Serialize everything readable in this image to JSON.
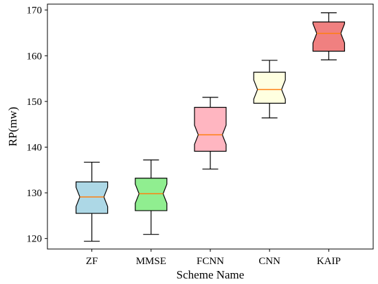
{
  "chart_data": {
    "type": "box",
    "categories": [
      "ZF",
      "MMSE",
      "FCNN",
      "CNN",
      "KAIP"
    ],
    "boxes": [
      {
        "category": "ZF",
        "whisker_low": 119.4,
        "q1": 125.5,
        "median": 129.1,
        "q3": 132.4,
        "whisker_high": 136.7,
        "color": "#add8e6"
      },
      {
        "category": "MMSE",
        "whisker_low": 120.9,
        "q1": 126.1,
        "median": 129.8,
        "q3": 133.2,
        "whisker_high": 137.2,
        "color": "#90ee90"
      },
      {
        "category": "FCNN",
        "whisker_low": 135.2,
        "q1": 139.1,
        "median": 142.7,
        "q3": 148.7,
        "whisker_high": 150.9,
        "color": "#ffb6c1"
      },
      {
        "category": "CNN",
        "whisker_low": 146.4,
        "q1": 149.6,
        "median": 152.6,
        "q3": 156.4,
        "whisker_high": 159.0,
        "color": "#ffffe0"
      },
      {
        "category": "KAIP",
        "whisker_low": 159.1,
        "q1": 161.0,
        "median": 164.9,
        "q3": 167.4,
        "whisker_high": 169.4,
        "color": "#f08080"
      }
    ],
    "notched": true,
    "median_color": "#ff7f0e",
    "xlabel": "Scheme Name",
    "ylabel": "RP(mw)",
    "ylim": [
      117.7,
      171.3
    ],
    "yticks": [
      120,
      130,
      140,
      150,
      160,
      170
    ],
    "grid": false,
    "legend": "none"
  }
}
